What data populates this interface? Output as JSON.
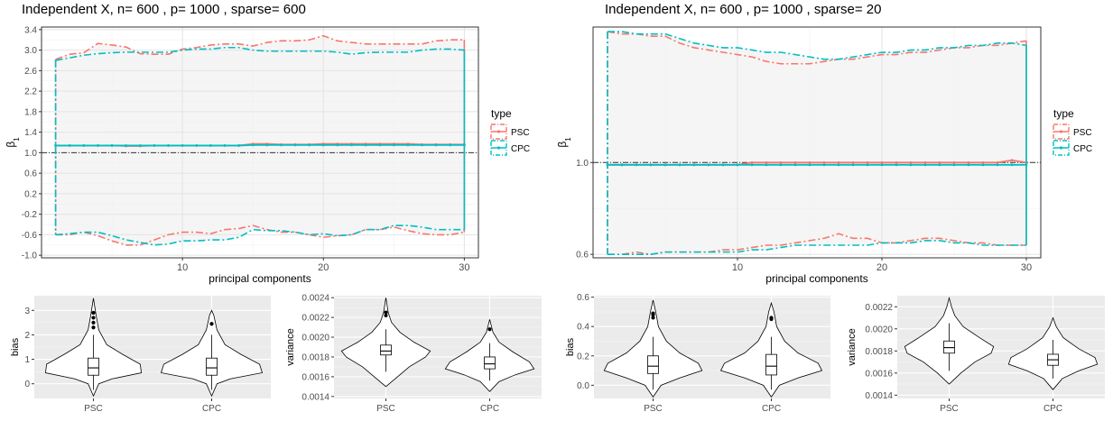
{
  "colors": {
    "psc": "#F8766D",
    "cpc": "#00BFC4",
    "panel": "#F5F5F5",
    "grid": "#E3E3E3",
    "violin_panel": "#EBEBEB"
  },
  "legend": {
    "title": "type",
    "entries": [
      "PSC",
      "CPC"
    ]
  },
  "chart_data": [
    {
      "type": "line",
      "title": "Independent X, n= 600 , p= 1000 , sparse= 600",
      "xlabel": "principal components",
      "ylabel": "β",
      "ylabel_subscript": "1",
      "xlim": [
        0,
        31
      ],
      "ylim": [
        -1.05,
        3.45
      ],
      "xticks": [
        10,
        20,
        30
      ],
      "yticks": [
        -1.0,
        -0.6,
        -0.2,
        0.2,
        0.6,
        1.0,
        1.4,
        1.8,
        2.2,
        2.6,
        3.0,
        3.4
      ],
      "ytick_labels": [
        "-1.0",
        "-0.6",
        "-0.2",
        "0.2",
        "0.6",
        "1.0",
        "1.4",
        "1.8",
        "2.2",
        "2.6",
        "3.0",
        "3.4"
      ],
      "reference_line": 1.0,
      "x": [
        1,
        2,
        3,
        4,
        5,
        6,
        7,
        8,
        9,
        10,
        11,
        12,
        13,
        14,
        15,
        16,
        17,
        18,
        19,
        20,
        21,
        22,
        23,
        24,
        25,
        26,
        27,
        28,
        29,
        30
      ],
      "series": [
        {
          "name": "PSC",
          "upper": [
            2.82,
            2.92,
            2.95,
            3.13,
            3.1,
            3.06,
            2.93,
            2.92,
            2.92,
            3.02,
            3.05,
            3.1,
            3.12,
            3.12,
            3.08,
            3.15,
            3.18,
            3.18,
            3.2,
            3.28,
            3.18,
            3.15,
            3.12,
            3.12,
            3.12,
            3.12,
            3.12,
            3.18,
            3.2,
            3.2
          ],
          "mean": [
            1.14,
            1.14,
            1.14,
            1.14,
            1.14,
            1.13,
            1.13,
            1.14,
            1.14,
            1.14,
            1.14,
            1.14,
            1.14,
            1.14,
            1.17,
            1.17,
            1.16,
            1.16,
            1.16,
            1.17,
            1.17,
            1.17,
            1.17,
            1.17,
            1.17,
            1.17,
            1.16,
            1.16,
            1.16,
            1.16
          ],
          "lower": [
            -0.6,
            -0.6,
            -0.55,
            -0.62,
            -0.72,
            -0.8,
            -0.8,
            -0.7,
            -0.6,
            -0.55,
            -0.55,
            -0.58,
            -0.5,
            -0.48,
            -0.42,
            -0.5,
            -0.55,
            -0.55,
            -0.6,
            -0.65,
            -0.62,
            -0.6,
            -0.5,
            -0.5,
            -0.45,
            -0.52,
            -0.58,
            -0.6,
            -0.6,
            -0.55
          ]
        },
        {
          "name": "CPC",
          "upper": [
            2.8,
            2.85,
            2.9,
            2.93,
            2.95,
            2.96,
            2.96,
            2.96,
            2.96,
            3.0,
            3.02,
            3.02,
            3.05,
            3.05,
            3.0,
            2.98,
            2.98,
            2.98,
            2.98,
            2.98,
            2.96,
            2.92,
            2.95,
            2.96,
            2.96,
            2.96,
            3.0,
            3.02,
            3.02,
            3.0
          ],
          "mean": [
            1.14,
            1.14,
            1.14,
            1.14,
            1.14,
            1.14,
            1.14,
            1.14,
            1.14,
            1.14,
            1.14,
            1.14,
            1.14,
            1.14,
            1.15,
            1.15,
            1.15,
            1.15,
            1.15,
            1.15,
            1.15,
            1.15,
            1.15,
            1.15,
            1.15,
            1.15,
            1.15,
            1.15,
            1.15,
            1.15
          ],
          "lower": [
            -0.6,
            -0.58,
            -0.55,
            -0.55,
            -0.62,
            -0.7,
            -0.75,
            -0.8,
            -0.78,
            -0.72,
            -0.72,
            -0.7,
            -0.7,
            -0.65,
            -0.5,
            -0.52,
            -0.52,
            -0.55,
            -0.6,
            -0.58,
            -0.62,
            -0.6,
            -0.5,
            -0.5,
            -0.42,
            -0.42,
            -0.45,
            -0.5,
            -0.5,
            -0.5
          ]
        }
      ]
    },
    {
      "type": "line",
      "title": "Independent X, n= 600 , p= 1000 , sparse= 20",
      "xlabel": "principal components",
      "ylabel": "β",
      "ylabel_subscript": "1",
      "xlim": [
        0,
        31
      ],
      "ylim": [
        0.585,
        1.59
      ],
      "xticks": [
        10,
        20,
        30
      ],
      "yticks": [
        0.6,
        1.0
      ],
      "ytick_labels": [
        "0.6",
        "1.0"
      ],
      "reference_line": 1.0,
      "x": [
        1,
        2,
        3,
        4,
        5,
        6,
        7,
        8,
        9,
        10,
        11,
        12,
        13,
        14,
        15,
        16,
        17,
        18,
        19,
        20,
        21,
        22,
        23,
        24,
        25,
        26,
        27,
        28,
        29,
        30
      ],
      "series": [
        {
          "name": "PSC",
          "upper": [
            1.57,
            1.56,
            1.56,
            1.55,
            1.55,
            1.52,
            1.5,
            1.49,
            1.48,
            1.47,
            1.46,
            1.44,
            1.43,
            1.43,
            1.43,
            1.44,
            1.45,
            1.45,
            1.46,
            1.47,
            1.47,
            1.48,
            1.48,
            1.49,
            1.5,
            1.5,
            1.51,
            1.51,
            1.52,
            1.53
          ],
          "mean": [
            0.99,
            0.99,
            0.99,
            0.99,
            0.99,
            0.99,
            0.99,
            0.99,
            0.99,
            0.99,
            1.0,
            1.0,
            1.0,
            1.0,
            1.0,
            1.0,
            1.0,
            1.0,
            1.0,
            1.0,
            1.0,
            1.0,
            1.0,
            1.0,
            1.0,
            1.0,
            1.0,
            1.0,
            1.01,
            1.0
          ],
          "lower": [
            0.6,
            0.6,
            0.61,
            0.6,
            0.61,
            0.61,
            0.61,
            0.61,
            0.62,
            0.62,
            0.63,
            0.64,
            0.64,
            0.65,
            0.66,
            0.67,
            0.69,
            0.67,
            0.67,
            0.65,
            0.65,
            0.66,
            0.67,
            0.67,
            0.66,
            0.65,
            0.65,
            0.64,
            0.64,
            0.64
          ]
        },
        {
          "name": "CPC",
          "upper": [
            1.57,
            1.57,
            1.56,
            1.56,
            1.56,
            1.54,
            1.52,
            1.51,
            1.5,
            1.5,
            1.49,
            1.48,
            1.48,
            1.47,
            1.46,
            1.45,
            1.45,
            1.46,
            1.47,
            1.48,
            1.48,
            1.49,
            1.49,
            1.5,
            1.5,
            1.51,
            1.51,
            1.52,
            1.52,
            1.51
          ],
          "mean": [
            0.99,
            0.99,
            0.99,
            0.99,
            0.99,
            0.99,
            0.99,
            0.99,
            0.99,
            0.99,
            0.99,
            0.99,
            0.99,
            0.99,
            0.99,
            0.99,
            0.99,
            0.99,
            0.99,
            0.99,
            0.99,
            0.99,
            0.99,
            0.99,
            0.99,
            0.99,
            0.99,
            0.99,
            0.99,
            0.99
          ],
          "lower": [
            0.6,
            0.6,
            0.6,
            0.6,
            0.61,
            0.61,
            0.61,
            0.61,
            0.61,
            0.61,
            0.62,
            0.62,
            0.63,
            0.64,
            0.64,
            0.64,
            0.64,
            0.64,
            0.64,
            0.65,
            0.65,
            0.65,
            0.66,
            0.66,
            0.65,
            0.65,
            0.64,
            0.64,
            0.64,
            0.64
          ]
        }
      ]
    },
    {
      "type": "violin",
      "ylabel": "bias",
      "categories": [
        "PSC",
        "CPC"
      ],
      "ylim": [
        -0.6,
        3.6
      ],
      "yticks": [
        0,
        1,
        2,
        3
      ],
      "ytick_labels": [
        "0",
        "1",
        "2",
        "3"
      ],
      "violins": [
        {
          "min": -0.5,
          "max": 3.5,
          "q1": 0.35,
          "median": 0.65,
          "q3": 1.05,
          "wlo": -0.25,
          "whi": 2.0,
          "profile": [
            [
              -0.5,
              0.0
            ],
            [
              0.0,
              0.1
            ],
            [
              0.2,
              0.35
            ],
            [
              0.45,
              0.9
            ],
            [
              0.8,
              0.88
            ],
            [
              1.2,
              0.55
            ],
            [
              1.6,
              0.25
            ],
            [
              2.2,
              0.1
            ],
            [
              2.8,
              0.05
            ],
            [
              3.5,
              0.0
            ]
          ],
          "outliers": [
            2.3,
            2.5,
            2.7,
            2.9
          ]
        },
        {
          "min": -0.5,
          "max": 3.0,
          "q1": 0.35,
          "median": 0.65,
          "q3": 1.05,
          "wlo": -0.25,
          "whi": 2.0,
          "profile": [
            [
              -0.5,
              0.0
            ],
            [
              0.0,
              0.1
            ],
            [
              0.2,
              0.35
            ],
            [
              0.45,
              0.95
            ],
            [
              0.8,
              0.9
            ],
            [
              1.2,
              0.55
            ],
            [
              1.6,
              0.25
            ],
            [
              2.2,
              0.1
            ],
            [
              2.8,
              0.04
            ],
            [
              3.0,
              0.0
            ]
          ],
          "outliers": [
            2.45
          ]
        }
      ]
    },
    {
      "type": "violin",
      "ylabel": "variance",
      "categories": [
        "PSC",
        "CPC"
      ],
      "ylim": [
        0.00138,
        0.00242
      ],
      "yticks": [
        0.0014,
        0.0016,
        0.0018,
        0.002,
        0.0022,
        0.0024
      ],
      "ytick_labels": [
        "0.0014",
        "0.0016",
        "0.0018",
        "0.0020",
        "0.0022",
        "0.0024"
      ],
      "violins": [
        {
          "min": 0.0015,
          "max": 0.0024,
          "q1": 0.00182,
          "median": 0.00186,
          "q3": 0.00192,
          "wlo": 0.00165,
          "whi": 0.00208,
          "profile": [
            [
              0.0015,
              0.0
            ],
            [
              0.0016,
              0.25
            ],
            [
              0.0017,
              0.5
            ],
            [
              0.0018,
              0.85
            ],
            [
              0.00186,
              0.95
            ],
            [
              0.00195,
              0.6
            ],
            [
              0.00205,
              0.3
            ],
            [
              0.00215,
              0.12
            ],
            [
              0.00225,
              0.05
            ],
            [
              0.0024,
              0.0
            ]
          ],
          "outliers": [
            0.00222,
            0.00225
          ]
        },
        {
          "min": 0.00145,
          "max": 0.00218,
          "q1": 0.00168,
          "median": 0.00173,
          "q3": 0.0018,
          "wlo": 0.00156,
          "whi": 0.00194,
          "profile": [
            [
              0.00145,
              0.0
            ],
            [
              0.00155,
              0.2
            ],
            [
              0.00162,
              0.55
            ],
            [
              0.00168,
              0.95
            ],
            [
              0.00175,
              0.85
            ],
            [
              0.00185,
              0.5
            ],
            [
              0.00195,
              0.2
            ],
            [
              0.00205,
              0.07
            ],
            [
              0.00218,
              0.0
            ]
          ],
          "outliers": [
            0.00208
          ]
        }
      ]
    },
    {
      "type": "violin",
      "ylabel": "bias",
      "categories": [
        "PSC",
        "CPC"
      ],
      "ylim": [
        -0.09,
        0.61
      ],
      "yticks": [
        0.0,
        0.2,
        0.4,
        0.6
      ],
      "ytick_labels": [
        "0.0",
        "0.2",
        "0.4",
        "0.6"
      ],
      "violins": [
        {
          "min": -0.08,
          "max": 0.58,
          "q1": 0.08,
          "median": 0.13,
          "q3": 0.2,
          "wlo": -0.03,
          "whi": 0.33,
          "profile": [
            [
              -0.08,
              0.0
            ],
            [
              0.0,
              0.15
            ],
            [
              0.05,
              0.5
            ],
            [
              0.1,
              0.92
            ],
            [
              0.15,
              0.85
            ],
            [
              0.22,
              0.5
            ],
            [
              0.3,
              0.25
            ],
            [
              0.4,
              0.1
            ],
            [
              0.5,
              0.05
            ],
            [
              0.58,
              0.0
            ]
          ],
          "outliers": [
            0.46,
            0.48,
            0.49
          ]
        },
        {
          "min": -0.08,
          "max": 0.56,
          "q1": 0.07,
          "median": 0.13,
          "q3": 0.21,
          "wlo": -0.03,
          "whi": 0.33,
          "profile": [
            [
              -0.08,
              0.0
            ],
            [
              0.0,
              0.15
            ],
            [
              0.05,
              0.5
            ],
            [
              0.1,
              0.95
            ],
            [
              0.15,
              0.88
            ],
            [
              0.22,
              0.5
            ],
            [
              0.3,
              0.25
            ],
            [
              0.4,
              0.1
            ],
            [
              0.5,
              0.05
            ],
            [
              0.56,
              0.0
            ]
          ],
          "outliers": [
            0.45,
            0.46
          ]
        }
      ]
    },
    {
      "type": "violin",
      "ylabel": "variance",
      "categories": [
        "PSC",
        "CPC"
      ],
      "ylim": [
        0.00137,
        0.0023
      ],
      "yticks": [
        0.0014,
        0.0016,
        0.0018,
        0.002,
        0.0022
      ],
      "ytick_labels": [
        "0.0014",
        "0.0016",
        "0.0018",
        "0.0020",
        "0.0022"
      ],
      "violins": [
        {
          "min": 0.0015,
          "max": 0.00228,
          "q1": 0.00178,
          "median": 0.00183,
          "q3": 0.00189,
          "wlo": 0.00162,
          "whi": 0.00205,
          "profile": [
            [
              0.0015,
              0.0
            ],
            [
              0.0016,
              0.25
            ],
            [
              0.0017,
              0.55
            ],
            [
              0.00178,
              0.9
            ],
            [
              0.00184,
              0.95
            ],
            [
              0.00192,
              0.65
            ],
            [
              0.00202,
              0.3
            ],
            [
              0.00212,
              0.12
            ],
            [
              0.0022,
              0.05
            ],
            [
              0.00228,
              0.0
            ]
          ],
          "outliers": []
        },
        {
          "min": 0.00145,
          "max": 0.0021,
          "q1": 0.00167,
          "median": 0.00172,
          "q3": 0.00177,
          "wlo": 0.00155,
          "whi": 0.0019,
          "profile": [
            [
              0.00145,
              0.0
            ],
            [
              0.00155,
              0.2
            ],
            [
              0.00162,
              0.55
            ],
            [
              0.00168,
              0.95
            ],
            [
              0.00174,
              0.9
            ],
            [
              0.00182,
              0.55
            ],
            [
              0.00192,
              0.22
            ],
            [
              0.00202,
              0.07
            ],
            [
              0.0021,
              0.0
            ]
          ],
          "outliers": []
        }
      ]
    }
  ]
}
